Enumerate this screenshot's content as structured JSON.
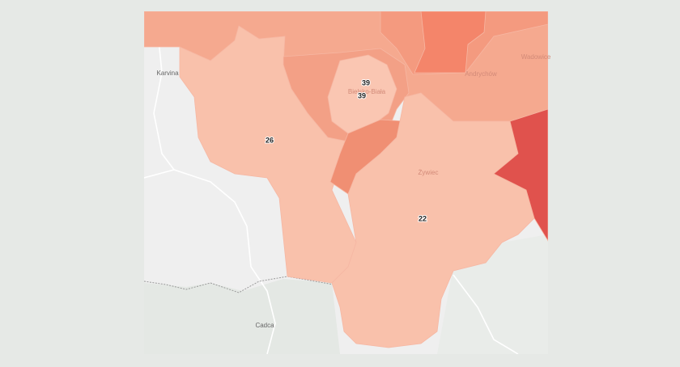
{
  "map": {
    "places": [
      "Karvina",
      "Bielsko-Biała",
      "Żywiec",
      "Andrychów",
      "Wadowice",
      "Cadca"
    ],
    "region_labels": [
      39,
      39,
      26,
      22
    ]
  }
}
